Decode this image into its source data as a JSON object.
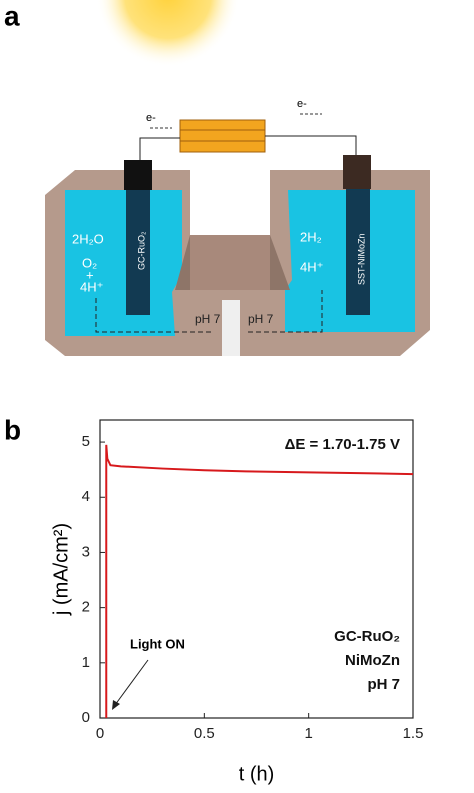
{
  "panel_a": {
    "label": "a",
    "electron_left": "e-",
    "electron_right": "e-",
    "left_reaction_1": "2H₂O",
    "left_reaction_2": "O₂",
    "left_reaction_3": "+",
    "left_reaction_4": "4H⁺",
    "left_electrode": "GC-RuO₂",
    "right_reaction_1": "2H₂",
    "right_reaction_2": "4H⁺",
    "right_electrode": "SST-NiMoZn",
    "ph_left": "pH 7",
    "ph_right": "pH 7"
  },
  "panel_b": {
    "label": "b"
  },
  "chart_data": {
    "type": "line",
    "xlabel": "t (h)",
    "ylabel": "j (mA/cm²)",
    "annotation": "ΔE = 1.70-1.75 V",
    "arrow_label": "Light ON",
    "notes": [
      "GC-RuO₂",
      "NiMoZn",
      "pH 7"
    ],
    "x": [
      0.03,
      0.03,
      0.035,
      0.05,
      0.1,
      0.3,
      0.5,
      0.7,
      1.0,
      1.2,
      1.5
    ],
    "series": [
      {
        "color": "#d7191c",
        "values": [
          0,
          4.95,
          4.7,
          4.58,
          4.56,
          4.52,
          4.49,
          4.47,
          4.45,
          4.44,
          4.42
        ]
      }
    ],
    "xlim": [
      0,
      1.5
    ],
    "ylim": [
      0,
      5.4
    ],
    "xticks": [
      0,
      0.5,
      1,
      1.5
    ],
    "yticks": [
      0,
      1,
      2,
      3,
      4,
      5
    ]
  }
}
